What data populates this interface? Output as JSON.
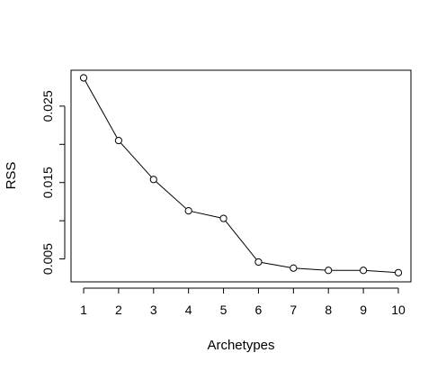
{
  "chart_data": {
    "type": "line",
    "title": "",
    "xlabel": "Archetypes",
    "ylabel": "RSS",
    "x": [
      1,
      2,
      3,
      4,
      5,
      6,
      7,
      8,
      9,
      10
    ],
    "y": [
      0.0287,
      0.0205,
      0.0154,
      0.0113,
      0.0103,
      0.0046,
      0.0038,
      0.0035,
      0.0035,
      0.0032
    ],
    "x_ticks": [
      1,
      2,
      3,
      4,
      5,
      6,
      7,
      8,
      9,
      10
    ],
    "x_tick_labels": [
      "1",
      "2",
      "3",
      "4",
      "5",
      "6",
      "7",
      "8",
      "9",
      "10"
    ],
    "y_ticks": [
      0.005,
      0.01,
      0.015,
      0.02,
      0.025
    ],
    "y_tick_labels": [
      "0.005",
      "",
      "0.015",
      "",
      "0.025"
    ],
    "xlim": [
      0.64,
      10.36
    ],
    "ylim": [
      0.002,
      0.0297
    ],
    "grid": false,
    "legend": "none",
    "markers": "open-circle",
    "line_color": "#000000"
  }
}
